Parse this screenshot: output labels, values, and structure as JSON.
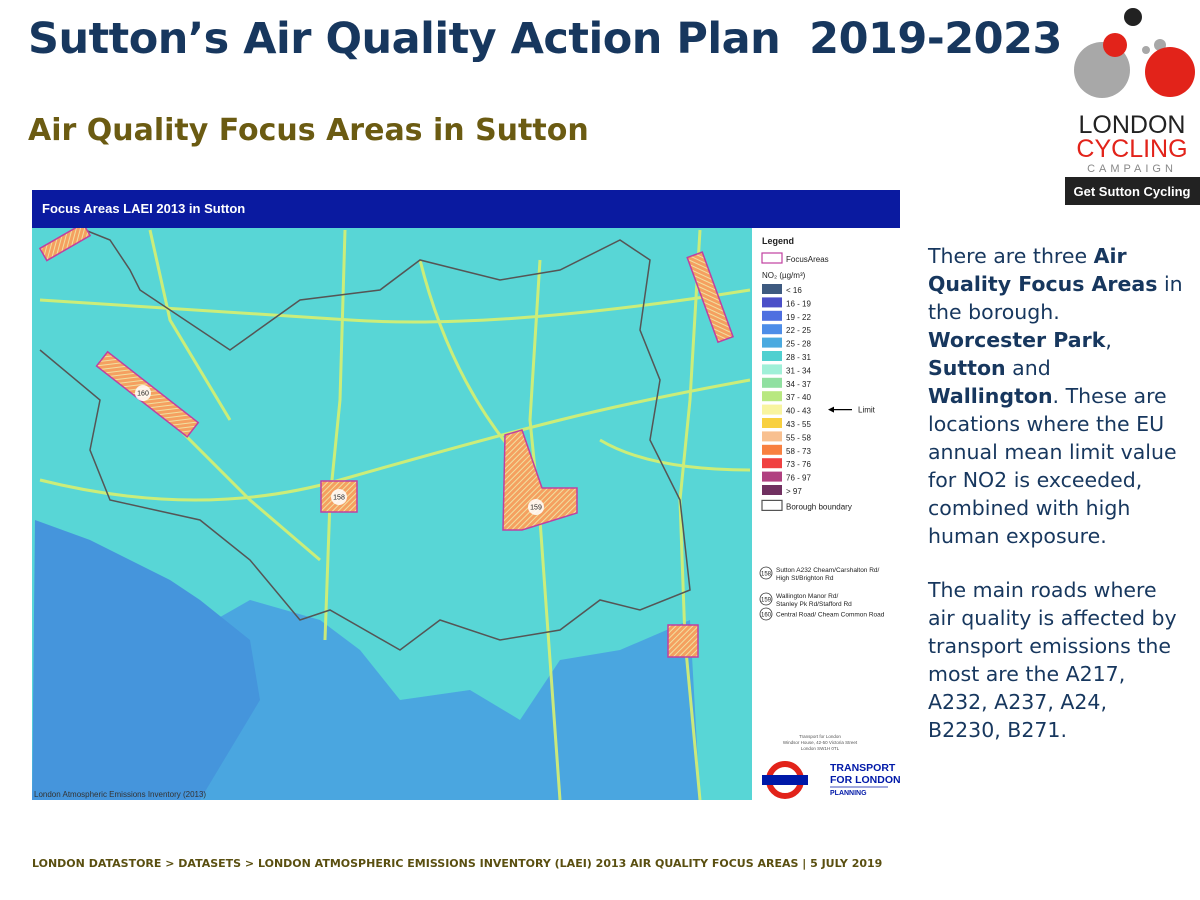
{
  "header": {
    "title": "Sutton’s Air Quality Action Plan  2019-2023",
    "subtitle": "Air Quality Focus Areas in Sutton"
  },
  "logo": {
    "line1": "LONDON",
    "line2": "CYCLING",
    "line3": "CAMPAIGN",
    "badge": "Get Sutton Cycling"
  },
  "map": {
    "header": "Focus Areas LAEI 2013 in Sutton",
    "legend_title": "Legend",
    "focus_areas_label": "FocusAreas",
    "no2_label": "NO₂ (µg/m³)",
    "legend": [
      {
        "label": "< 16",
        "color": "#3e5a80"
      },
      {
        "label": "16 - 19",
        "color": "#4b4fc8"
      },
      {
        "label": "19 - 22",
        "color": "#4e6fe0"
      },
      {
        "label": "22 - 25",
        "color": "#4d8de8"
      },
      {
        "label": "25 - 28",
        "color": "#4aaae0"
      },
      {
        "label": "28 - 31",
        "color": "#50d0d0"
      },
      {
        "label": "31 - 34",
        "color": "#a0f0d8"
      },
      {
        "label": "34 - 37",
        "color": "#90e0a0"
      },
      {
        "label": "37 - 40",
        "color": "#b8e880"
      },
      {
        "label": "40 - 43",
        "color": "#f8f4a0"
      },
      {
        "label": "43 - 55",
        "color": "#f8d040"
      },
      {
        "label": "55 - 58",
        "color": "#f8c090"
      },
      {
        "label": "58 - 73",
        "color": "#f88040"
      },
      {
        "label": "73 - 76",
        "color": "#f04040"
      },
      {
        "label": "76 - 97",
        "color": "#b04080"
      },
      {
        "label": "> 97",
        "color": "#703060"
      }
    ],
    "limit_label": "Limit",
    "boundary_label": "Borough boundary",
    "focus_list": [
      {
        "number": "158",
        "text": "Sutton A232 Cheam/Carshalton Rd/ High St/Brighton Rd"
      },
      {
        "number": "159",
        "text": "Wallington Manor Rd/ Stanley Pk Rd/Stafford Rd"
      },
      {
        "number": "160",
        "text": "Central Road/ Cheam Common Road"
      }
    ],
    "tfl_address": [
      "Transport for London",
      "Windsor House, 42-50 Victoria Street",
      "London SW1H 0TL"
    ],
    "tfl_name": [
      "TRANSPORT",
      "FOR LONDON"
    ],
    "tfl_division": "PLANNING",
    "source": "London Atmospheric Emissions Inventory (2013)"
  },
  "body": {
    "paragraphs": [
      {
        "runs": [
          {
            "text": "There are three ",
            "bold": false
          },
          {
            "text": "Air Quality Focus Areas",
            "bold": true
          },
          {
            "text": " in the borough. ",
            "bold": false
          },
          {
            "text": "Worcester Park",
            "bold": true
          },
          {
            "text": ", ",
            "bold": false
          },
          {
            "text": "Sutton",
            "bold": true
          },
          {
            "text": " and ",
            "bold": false
          },
          {
            "text": "Wallington",
            "bold": true
          },
          {
            "text": ". These are locations where the EU annual mean limit value for NO2 is exceeded, combined with high human exposure.",
            "bold": false
          }
        ]
      },
      {
        "runs": [
          {
            "text": "The main roads where air quality is affected by transport emissions the most are the A217, A232, A237, A24, B2230, B271.",
            "bold": false
          }
        ]
      }
    ]
  },
  "footer": "LONDON DATASTORE > DATASETS > LONDON ATMOSPHERIC EMISSIONS INVENTORY (LAEI) 2013 AIR QUALITY FOCUS AREAS | 5 JULY 2019"
}
